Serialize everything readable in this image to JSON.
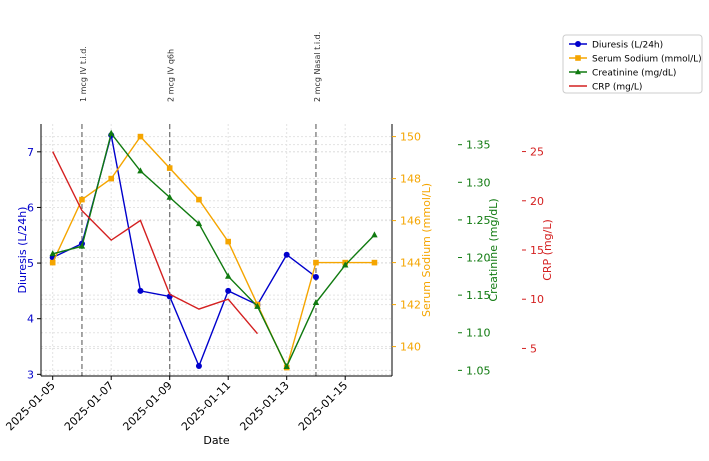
{
  "chart_data": {
    "type": "line",
    "xlabel": "Date",
    "x_ticks": [
      "2025-01-05",
      "2025-01-07",
      "2025-01-09",
      "2025-01-11",
      "2025-01-13",
      "2025-01-15"
    ],
    "x_range": [
      "2025-01-04.6",
      "2025-01-16.6"
    ],
    "grid": true,
    "legend_position": "top-right",
    "annotations": [
      {
        "date": "2025-01-06",
        "text": "1 mcg IV t.i.d."
      },
      {
        "date": "2025-01-09",
        "text": "2 mcg IV q6h"
      },
      {
        "date": "2025-01-14",
        "text": "2 mcg Nasal t.i.d."
      }
    ],
    "axes": [
      {
        "id": "diuresis",
        "label": "Diuresis (L/24h)",
        "color": "#0000cc",
        "ylim": [
          2.97,
          7.5
        ],
        "ticks": [
          3,
          4,
          5,
          6,
          7
        ],
        "tick_labels": [
          "3",
          "4",
          "5",
          "6",
          "7"
        ]
      },
      {
        "id": "sodium",
        "label": "Serum Sodium (mmol/L)",
        "color": "#f5a500",
        "ylim": [
          138.6,
          150.6
        ],
        "ticks": [
          140,
          142,
          144,
          146,
          148,
          150
        ],
        "tick_labels": [
          "140",
          "142",
          "144",
          "146",
          "148",
          "150"
        ]
      },
      {
        "id": "creatinine",
        "label": "Creatinine (mg/dL)",
        "color": "#107a10",
        "ylim": [
          1.0425,
          1.3775
        ],
        "ticks": [
          1.05,
          1.1,
          1.15,
          1.2,
          1.25,
          1.3,
          1.35
        ],
        "tick_labels": [
          "1.05",
          "1.10",
          "1.15",
          "1.20",
          "1.25",
          "1.30",
          "1.35"
        ]
      },
      {
        "id": "crp",
        "label": "CRP (mg/L)",
        "color": "#d42020",
        "ylim": [
          2.2,
          27.8
        ],
        "ticks": [
          5,
          10,
          15,
          20,
          25
        ],
        "tick_labels": [
          "5",
          "10",
          "15",
          "20",
          "25"
        ]
      }
    ],
    "series": [
      {
        "name": "Diuresis (L/24h)",
        "axis": "diuresis",
        "color": "#0000cc",
        "marker": "circle",
        "x": [
          "2025-01-05",
          "2025-01-06",
          "2025-01-07",
          "2025-01-08",
          "2025-01-09",
          "2025-01-10",
          "2025-01-11",
          "2025-01-12",
          "2025-01-13",
          "2025-01-14"
        ],
        "values": [
          5.1,
          5.35,
          7.3,
          4.5,
          4.4,
          3.15,
          4.5,
          4.25,
          5.15,
          4.75
        ]
      },
      {
        "name": "Serum Sodium (mmol/L)",
        "axis": "sodium",
        "color": "#f5a500",
        "marker": "square",
        "x": [
          "2025-01-05",
          "2025-01-06",
          "2025-01-07",
          "2025-01-08",
          "2025-01-09",
          "2025-01-10",
          "2025-01-11",
          "2025-01-12",
          "2025-01-13",
          "2025-01-14",
          "2025-01-15",
          "2025-01-16"
        ],
        "values": [
          144,
          147,
          148,
          150,
          148.5,
          147,
          145,
          142,
          139,
          144,
          144,
          144
        ]
      },
      {
        "name": "Creatinine (mg/dL)",
        "axis": "creatinine",
        "color": "#107a10",
        "marker": "triangle",
        "x": [
          "2025-01-05",
          "2025-01-06",
          "2025-01-07",
          "2025-01-08",
          "2025-01-09",
          "2025-01-10",
          "2025-01-11",
          "2025-01-12",
          "2025-01-13",
          "2025-01-14",
          "2025-01-15",
          "2025-01-16"
        ],
        "values": [
          1.205,
          1.215,
          1.365,
          1.315,
          1.28,
          1.245,
          1.175,
          1.135,
          1.055,
          1.14,
          1.19,
          1.23
        ]
      },
      {
        "name": "CRP (mg/L)",
        "axis": "crp",
        "color": "#d42020",
        "marker": "none",
        "x": [
          "2025-01-05",
          "2025-01-06",
          "2025-01-07",
          "2025-01-08",
          "2025-01-09",
          "2025-01-10",
          "2025-01-11",
          "2025-01-12"
        ],
        "values": [
          25,
          19,
          16,
          18,
          10.5,
          9,
          10,
          6.5
        ]
      }
    ]
  }
}
